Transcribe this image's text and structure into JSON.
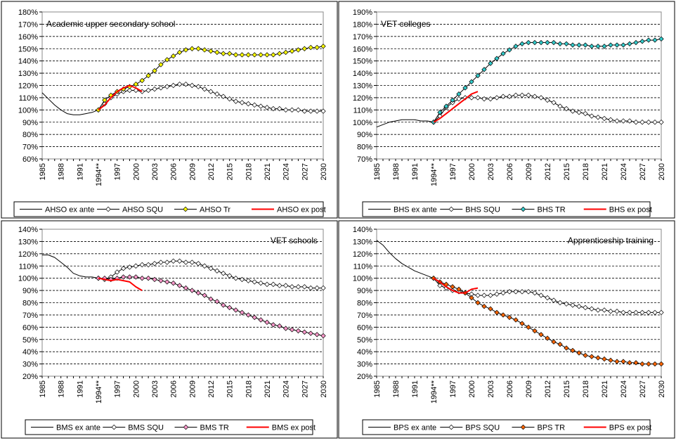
{
  "chart_data": [
    {
      "type": "line",
      "title": "Academic upper secondary school",
      "x_start": 1985,
      "x_end": 2030,
      "x_tick_labels": [
        "1985",
        "1988",
        "1991",
        "1994**",
        "1997",
        "2000",
        "2003",
        "2006",
        "2009",
        "2012",
        "2015",
        "2018",
        "2021",
        "2024",
        "2027",
        "2030"
      ],
      "x_tick_years": [
        1985,
        1988,
        1991,
        1994,
        1997,
        2000,
        2003,
        2006,
        2009,
        2012,
        2015,
        2018,
        2021,
        2024,
        2027,
        2030
      ],
      "ylim": [
        60,
        180
      ],
      "y_step": 10,
      "y_tick_format": "{v}%",
      "grid": true,
      "legend_position": "bottom",
      "series": [
        {
          "name": "AHSO ex ante",
          "color": "#000000",
          "marker": "none",
          "width": 1,
          "x": [
            1985,
            1986,
            1987,
            1988,
            1989,
            1990,
            1991,
            1992,
            1993,
            1994
          ],
          "y": [
            114,
            109,
            104,
            100,
            97,
            96,
            96,
            97,
            98,
            100
          ]
        },
        {
          "name": "AHSO SQU",
          "color": "#000000",
          "marker": "diamond",
          "fill": "#ffffff",
          "width": 1,
          "x": [
            1994,
            1995,
            1996,
            1997,
            1998,
            1999,
            2000,
            2001,
            2002,
            2003,
            2004,
            2005,
            2006,
            2007,
            2008,
            2009,
            2010,
            2011,
            2012,
            2013,
            2014,
            2015,
            2016,
            2017,
            2018,
            2019,
            2020,
            2021,
            2022,
            2023,
            2024,
            2025,
            2026,
            2027,
            2028,
            2029,
            2030
          ],
          "y": [
            100,
            105,
            110,
            113,
            115,
            116,
            116,
            115,
            116,
            117,
            118,
            119,
            120,
            121,
            121,
            120,
            119,
            117,
            115,
            113,
            111,
            109,
            107,
            106,
            105,
            104,
            103,
            102,
            101,
            101,
            100,
            100,
            100,
            99,
            99,
            99,
            99
          ]
        },
        {
          "name": "AHSO Tr",
          "color": "#000000",
          "marker": "diamond",
          "fill": "#ffff00",
          "width": 1,
          "x": [
            1994,
            1995,
            1996,
            1997,
            1998,
            1999,
            2000,
            2001,
            2002,
            2003,
            2004,
            2005,
            2006,
            2007,
            2008,
            2009,
            2010,
            2011,
            2012,
            2013,
            2014,
            2015,
            2016,
            2017,
            2018,
            2019,
            2020,
            2021,
            2022,
            2023,
            2024,
            2025,
            2026,
            2027,
            2028,
            2029,
            2030
          ],
          "y": [
            100,
            108,
            112,
            115,
            117,
            119,
            121,
            124,
            128,
            132,
            137,
            141,
            144,
            147,
            149,
            150,
            150,
            149,
            148,
            147,
            146,
            146,
            145,
            145,
            145,
            145,
            145,
            145,
            145,
            146,
            147,
            148,
            149,
            150,
            151,
            151,
            152
          ]
        },
        {
          "name": "AHSO ex post",
          "color": "#ff0000",
          "marker": "none",
          "width": 2,
          "x": [
            1994,
            1995,
            1996,
            1997,
            1998,
            1999,
            2000,
            2001
          ],
          "y": [
            100,
            104,
            110,
            115,
            118,
            120,
            118,
            115
          ]
        }
      ]
    },
    {
      "type": "line",
      "title": "VET colleges",
      "x_start": 1985,
      "x_end": 2030,
      "x_tick_labels": [
        "1985",
        "1988",
        "1991",
        "1994**",
        "1997",
        "2000",
        "2003",
        "2006",
        "2009",
        "2012",
        "2015",
        "2018",
        "2021",
        "2024",
        "2027",
        "2030"
      ],
      "x_tick_years": [
        1985,
        1988,
        1991,
        1994,
        1997,
        2000,
        2003,
        2006,
        2009,
        2012,
        2015,
        2018,
        2021,
        2024,
        2027,
        2030
      ],
      "ylim": [
        70,
        190
      ],
      "y_step": 10,
      "y_tick_format": "{v}%",
      "grid": true,
      "legend_position": "bottom",
      "series": [
        {
          "name": "BHS ex ante",
          "color": "#000000",
          "marker": "none",
          "width": 1,
          "x": [
            1985,
            1986,
            1987,
            1988,
            1989,
            1990,
            1991,
            1992,
            1993,
            1994
          ],
          "y": [
            96,
            98,
            100,
            101,
            102,
            102,
            102,
            101,
            101,
            100
          ]
        },
        {
          "name": "BHS SQU",
          "color": "#000000",
          "marker": "diamond",
          "fill": "#ffffff",
          "width": 1,
          "x": [
            1994,
            1995,
            1996,
            1997,
            1998,
            1999,
            2000,
            2001,
            2002,
            2003,
            2004,
            2005,
            2006,
            2007,
            2008,
            2009,
            2010,
            2011,
            2012,
            2013,
            2014,
            2015,
            2016,
            2017,
            2018,
            2019,
            2020,
            2021,
            2022,
            2023,
            2024,
            2025,
            2026,
            2027,
            2028,
            2029,
            2030
          ],
          "y": [
            100,
            105,
            112,
            116,
            119,
            120,
            120,
            120,
            119,
            119,
            120,
            121,
            121,
            122,
            122,
            122,
            121,
            120,
            118,
            116,
            113,
            111,
            109,
            108,
            107,
            105,
            104,
            103,
            102,
            101,
            101,
            101,
            100,
            100,
            100,
            100,
            100
          ]
        },
        {
          "name": "BHS TR",
          "color": "#000000",
          "marker": "diamond",
          "fill": "#33cccc",
          "width": 1,
          "x": [
            1994,
            1995,
            1996,
            1997,
            1998,
            1999,
            2000,
            2001,
            2002,
            2003,
            2004,
            2005,
            2006,
            2007,
            2008,
            2009,
            2010,
            2011,
            2012,
            2013,
            2014,
            2015,
            2016,
            2017,
            2018,
            2019,
            2020,
            2021,
            2022,
            2023,
            2024,
            2025,
            2026,
            2027,
            2028,
            2029,
            2030
          ],
          "y": [
            100,
            108,
            113,
            118,
            123,
            128,
            133,
            138,
            143,
            148,
            152,
            156,
            159,
            162,
            164,
            165,
            165,
            165,
            165,
            165,
            164,
            164,
            163,
            163,
            163,
            162,
            162,
            162,
            163,
            163,
            163,
            164,
            165,
            166,
            167,
            167,
            168
          ]
        },
        {
          "name": "BHS ex post",
          "color": "#ff0000",
          "marker": "none",
          "width": 2,
          "x": [
            1994,
            1995,
            1996,
            1997,
            1998,
            1999,
            2000,
            2001
          ],
          "y": [
            100,
            103,
            107,
            111,
            115,
            119,
            123,
            125
          ]
        }
      ]
    },
    {
      "type": "line",
      "title": "VET schools",
      "x_start": 1985,
      "x_end": 2030,
      "x_tick_labels": [
        "1985",
        "1988",
        "1991",
        "1994**",
        "1997",
        "2000",
        "2003",
        "2006",
        "2009",
        "2012",
        "2015",
        "2018",
        "2021",
        "2024",
        "2027",
        "2030"
      ],
      "x_tick_years": [
        1985,
        1988,
        1991,
        1994,
        1997,
        2000,
        2003,
        2006,
        2009,
        2012,
        2015,
        2018,
        2021,
        2024,
        2027,
        2030
      ],
      "ylim": [
        20,
        140
      ],
      "y_step": 10,
      "y_tick_format": "{v}%",
      "grid": true,
      "legend_position": "bottom",
      "series": [
        {
          "name": "BMS ex ante",
          "color": "#000000",
          "marker": "none",
          "width": 1,
          "x": [
            1985,
            1986,
            1987,
            1988,
            1989,
            1990,
            1991,
            1992,
            1993,
            1994
          ],
          "y": [
            119,
            119,
            117,
            113,
            109,
            104,
            102,
            101,
            101,
            100
          ]
        },
        {
          "name": "BMS SQU",
          "color": "#000000",
          "marker": "diamond",
          "fill": "#ffffff",
          "width": 1,
          "x": [
            1994,
            1995,
            1996,
            1997,
            1998,
            1999,
            2000,
            2001,
            2002,
            2003,
            2004,
            2005,
            2006,
            2007,
            2008,
            2009,
            2010,
            2011,
            2012,
            2013,
            2014,
            2015,
            2016,
            2017,
            2018,
            2019,
            2020,
            2021,
            2022,
            2023,
            2024,
            2025,
            2026,
            2027,
            2028,
            2029,
            2030
          ],
          "y": [
            100,
            99,
            101,
            105,
            108,
            109,
            110,
            111,
            111,
            112,
            113,
            113,
            114,
            114,
            113,
            113,
            112,
            110,
            108,
            106,
            104,
            102,
            100,
            99,
            98,
            97,
            96,
            95,
            95,
            94,
            94,
            93,
            93,
            93,
            92,
            92,
            92
          ]
        },
        {
          "name": "BMS TR",
          "color": "#000000",
          "marker": "diamond",
          "fill": "#ff99cc",
          "width": 1,
          "x": [
            1994,
            1995,
            1996,
            1997,
            1998,
            1999,
            2000,
            2001,
            2002,
            2003,
            2004,
            2005,
            2006,
            2007,
            2008,
            2009,
            2010,
            2011,
            2012,
            2013,
            2014,
            2015,
            2016,
            2017,
            2018,
            2019,
            2020,
            2021,
            2022,
            2023,
            2024,
            2025,
            2026,
            2027,
            2028,
            2029,
            2030
          ],
          "y": [
            100,
            100,
            99,
            100,
            101,
            101,
            101,
            100,
            100,
            99,
            98,
            97,
            96,
            94,
            92,
            90,
            88,
            86,
            83,
            81,
            78,
            76,
            74,
            72,
            70,
            68,
            66,
            64,
            62,
            61,
            59,
            58,
            57,
            56,
            55,
            54,
            53
          ]
        },
        {
          "name": "BMS ex post",
          "color": "#ff0000",
          "marker": "none",
          "width": 2,
          "x": [
            1994,
            1995,
            1996,
            1997,
            1998,
            1999,
            2000,
            2001
          ],
          "y": [
            100,
            99,
            98,
            99,
            98,
            97,
            93,
            90
          ]
        }
      ]
    },
    {
      "type": "line",
      "title": "Apprenticeship training",
      "x_start": 1985,
      "x_end": 2030,
      "x_tick_labels": [
        "1985",
        "1988",
        "1991",
        "1994**",
        "1997",
        "2000",
        "2003",
        "2006",
        "2009",
        "2012",
        "2015",
        "2018",
        "2021",
        "2024",
        "2027",
        "2030"
      ],
      "x_tick_years": [
        1985,
        1988,
        1991,
        1994,
        1997,
        2000,
        2003,
        2006,
        2009,
        2012,
        2015,
        2018,
        2021,
        2024,
        2027,
        2030
      ],
      "ylim": [
        20,
        140
      ],
      "y_step": 10,
      "y_tick_format": "{v}%",
      "grid": true,
      "legend_position": "bottom",
      "series": [
        {
          "name": "BPS ex ante",
          "color": "#000000",
          "marker": "none",
          "width": 1,
          "x": [
            1985,
            1986,
            1987,
            1988,
            1989,
            1990,
            1991,
            1992,
            1993,
            1994
          ],
          "y": [
            131,
            127,
            121,
            116,
            112,
            109,
            106,
            104,
            102,
            100
          ]
        },
        {
          "name": "BPS SQU",
          "color": "#000000",
          "marker": "diamond",
          "fill": "#ffffff",
          "width": 1,
          "x": [
            1994,
            1995,
            1996,
            1997,
            1998,
            1999,
            2000,
            2001,
            2002,
            2003,
            2004,
            2005,
            2006,
            2007,
            2008,
            2009,
            2010,
            2011,
            2012,
            2013,
            2014,
            2015,
            2016,
            2017,
            2018,
            2019,
            2020,
            2021,
            2022,
            2023,
            2024,
            2025,
            2026,
            2027,
            2028,
            2029,
            2030
          ],
          "y": [
            100,
            94,
            92,
            90,
            89,
            88,
            87,
            86,
            86,
            86,
            87,
            88,
            89,
            89,
            89,
            89,
            88,
            86,
            84,
            82,
            80,
            79,
            78,
            77,
            76,
            75,
            74,
            74,
            73,
            73,
            72,
            72,
            72,
            72,
            72,
            72,
            72
          ]
        },
        {
          "name": "BPS TR",
          "color": "#000000",
          "marker": "diamond",
          "fill": "#ff6600",
          "width": 1,
          "x": [
            1994,
            1995,
            1996,
            1997,
            1998,
            1999,
            2000,
            2001,
            2002,
            2003,
            2004,
            2005,
            2006,
            2007,
            2008,
            2009,
            2010,
            2011,
            2012,
            2013,
            2014,
            2015,
            2016,
            2017,
            2018,
            2019,
            2020,
            2021,
            2022,
            2023,
            2024,
            2025,
            2026,
            2027,
            2028,
            2029,
            2030
          ],
          "y": [
            100,
            97,
            95,
            93,
            91,
            88,
            84,
            80,
            77,
            75,
            72,
            70,
            68,
            66,
            63,
            60,
            57,
            54,
            51,
            48,
            46,
            43,
            41,
            39,
            37,
            36,
            35,
            34,
            33,
            32,
            32,
            31,
            31,
            30,
            30,
            30,
            30
          ]
        },
        {
          "name": "BPS ex post",
          "color": "#ff0000",
          "marker": "none",
          "width": 2,
          "x": [
            1994,
            1995,
            1996,
            1997,
            1998,
            1999,
            2000,
            2001
          ],
          "y": [
            100,
            97,
            93,
            90,
            88,
            88,
            91,
            92
          ]
        }
      ]
    }
  ]
}
